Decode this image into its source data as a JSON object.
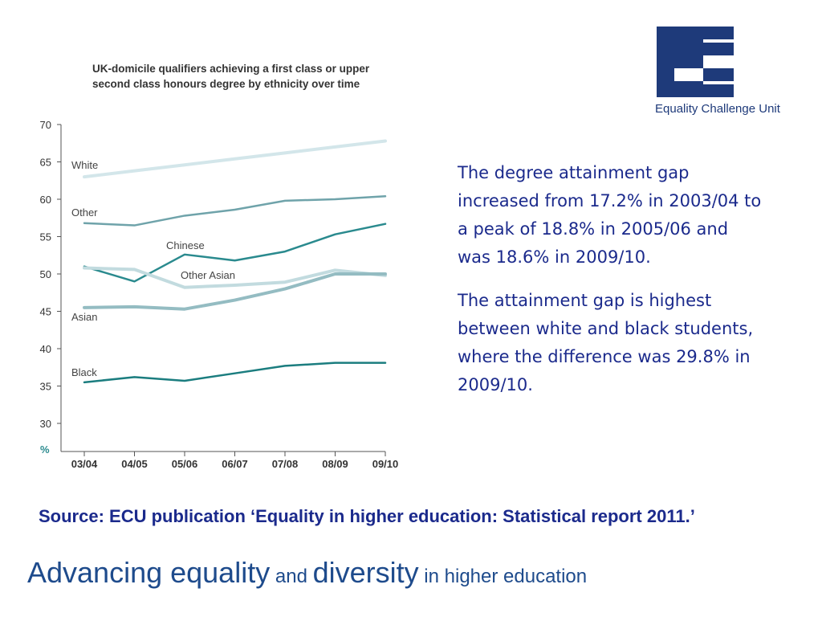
{
  "chart_data": {
    "type": "line",
    "title_lines": [
      "UK-domicile qualifiers achieving a first class or upper",
      "second class honours degree by ethnicity over time"
    ],
    "ylabel": "%",
    "ylim": [
      30,
      70
    ],
    "yticks": [
      30,
      35,
      40,
      45,
      50,
      55,
      60,
      65,
      70
    ],
    "categories": [
      "03/04",
      "04/05",
      "05/06",
      "06/07",
      "07/08",
      "08/09",
      "09/10"
    ],
    "legend": "inline",
    "grid": false,
    "series": [
      {
        "name": "White",
        "values": [
          63.0,
          63.8,
          64.6,
          65.4,
          66.2,
          67.0,
          67.8
        ],
        "color": "#d3e6ea",
        "width": 4
      },
      {
        "name": "Other",
        "values": [
          56.8,
          56.5,
          57.8,
          58.6,
          59.8,
          60.0,
          60.4
        ],
        "color": "#6fa3aa",
        "width": 2.5
      },
      {
        "name": "Chinese",
        "values": [
          51.0,
          49.0,
          52.6,
          51.8,
          53.0,
          55.3,
          56.7
        ],
        "color": "#2a8a8e",
        "width": 2.5
      },
      {
        "name": "Other Asian",
        "values": [
          50.8,
          50.6,
          48.2,
          48.5,
          48.9,
          50.5,
          49.8
        ],
        "color": "#c2dbdf",
        "width": 4
      },
      {
        "name": "Asian",
        "values": [
          45.5,
          45.6,
          45.3,
          46.5,
          48.0,
          50.0,
          50.0
        ],
        "color": "#94bcc2",
        "width": 4
      },
      {
        "name": "Black",
        "values": [
          35.5,
          36.2,
          35.7,
          36.7,
          37.7,
          38.1,
          38.1
        ],
        "color": "#1b7d7f",
        "width": 2.5
      }
    ]
  },
  "logo": {
    "name": "Equality Challenge Unit",
    "color": "#1e3a7a",
    "icon": "ecu-e-logo-mark"
  },
  "body": {
    "paragraph_1": "The degree attainment gap increased from 17.2% in 2003/04 to a peak of 18.8% in 2005/06 and was 18.6% in 2009/10.",
    "paragraph_2": "The attainment gap is highest between white and black students, where the difference was 29.8% in 2009/10."
  },
  "source": "Source: ECU publication ‘Equality in higher education: Statistical report 2011.’",
  "tagline": {
    "part_1": "Advancing equality",
    "part_2": " and ",
    "part_3": "diversity",
    "part_4": " in higher education"
  },
  "colors": {
    "text_blue": "#1b2a8c",
    "axis_text": "#333333",
    "percent_label": "#2a8a8e",
    "tagline_blue": "#1e4b8c"
  }
}
